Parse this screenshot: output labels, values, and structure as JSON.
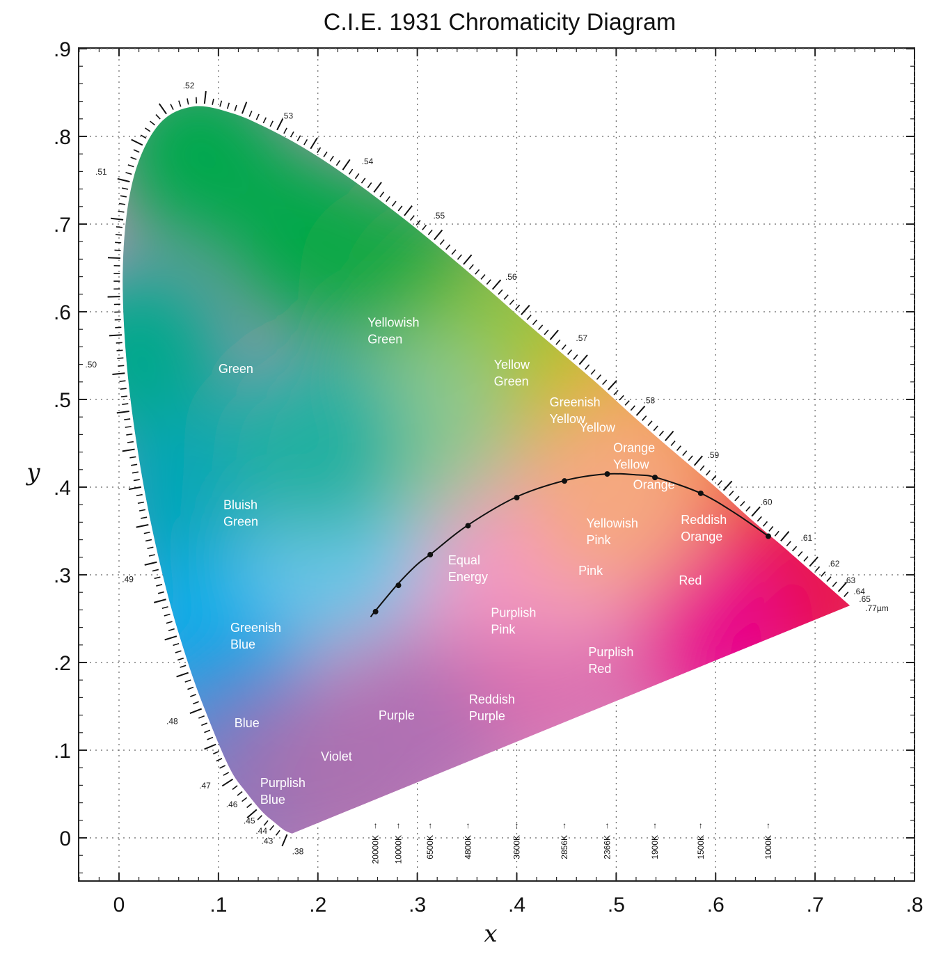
{
  "chart_data": {
    "type": "scatter",
    "title": "C.I.E. 1931 Chromaticity Diagram",
    "xlabel": "x",
    "ylabel": "y",
    "xlim": [
      -0.04,
      0.8
    ],
    "ylim": [
      -0.05,
      0.9
    ],
    "grid": true,
    "x_ticks": [
      {
        "v": 0,
        "label": "0"
      },
      {
        "v": 0.1,
        "label": ".1"
      },
      {
        "v": 0.2,
        "label": ".2"
      },
      {
        "v": 0.3,
        "label": ".3"
      },
      {
        "v": 0.4,
        "label": ".4"
      },
      {
        "v": 0.5,
        "label": ".5"
      },
      {
        "v": 0.6,
        "label": ".6"
      },
      {
        "v": 0.7,
        "label": ".7"
      },
      {
        "v": 0.8,
        "label": ".8"
      }
    ],
    "y_ticks": [
      {
        "v": 0,
        "label": "0"
      },
      {
        "v": 0.1,
        "label": ".1"
      },
      {
        "v": 0.2,
        "label": ".2"
      },
      {
        "v": 0.3,
        "label": ".3"
      },
      {
        "v": 0.4,
        "label": ".4"
      },
      {
        "v": 0.5,
        "label": ".5"
      },
      {
        "v": 0.6,
        "label": ".6"
      },
      {
        "v": 0.7,
        "label": ".7"
      },
      {
        "v": 0.8,
        "label": ".8"
      },
      {
        "v": 0.9,
        "label": ".9"
      }
    ],
    "spectral_locus": [
      [
        0.174,
        0.005
      ],
      [
        0.166,
        0.009
      ],
      [
        0.156,
        0.018
      ],
      [
        0.144,
        0.03
      ],
      [
        0.128,
        0.052
      ],
      [
        0.112,
        0.078
      ],
      [
        0.091,
        0.133
      ],
      [
        0.069,
        0.201
      ],
      [
        0.045,
        0.295
      ],
      [
        0.023,
        0.413
      ],
      [
        0.008,
        0.538
      ],
      [
        0.004,
        0.655
      ],
      [
        0.014,
        0.75
      ],
      [
        0.039,
        0.812
      ],
      [
        0.074,
        0.834
      ],
      [
        0.115,
        0.826
      ],
      [
        0.155,
        0.806
      ],
      [
        0.193,
        0.782
      ],
      [
        0.23,
        0.754
      ],
      [
        0.266,
        0.724
      ],
      [
        0.302,
        0.692
      ],
      [
        0.337,
        0.659
      ],
      [
        0.373,
        0.624
      ],
      [
        0.408,
        0.589
      ],
      [
        0.444,
        0.554
      ],
      [
        0.479,
        0.52
      ],
      [
        0.512,
        0.486
      ],
      [
        0.544,
        0.454
      ],
      [
        0.575,
        0.424
      ],
      [
        0.603,
        0.397
      ],
      [
        0.627,
        0.372
      ],
      [
        0.648,
        0.351
      ],
      [
        0.666,
        0.334
      ],
      [
        0.68,
        0.32
      ],
      [
        0.692,
        0.308
      ],
      [
        0.701,
        0.299
      ],
      [
        0.714,
        0.286
      ],
      [
        0.735,
        0.265
      ]
    ],
    "wavelength_labels": [
      {
        "label": ".38",
        "x": 0.174,
        "y": 0.005
      },
      {
        "label": ".43",
        "x": 0.167,
        "y": 0.009
      },
      {
        "label": ".44",
        "x": 0.164,
        "y": 0.011
      },
      {
        "label": ".45",
        "x": 0.156,
        "y": 0.018
      },
      {
        "label": ".46",
        "x": 0.144,
        "y": 0.03
      },
      {
        "label": ".47",
        "x": 0.124,
        "y": 0.058
      },
      {
        "label": ".48",
        "x": 0.091,
        "y": 0.133
      },
      {
        "label": ".49",
        "x": 0.045,
        "y": 0.295
      },
      {
        "label": ".50",
        "x": 0.008,
        "y": 0.538
      },
      {
        "label": ".51",
        "x": 0.014,
        "y": 0.75
      },
      {
        "label": ".52",
        "x": 0.074,
        "y": 0.834
      },
      {
        "label": ".53",
        "x": 0.155,
        "y": 0.806
      },
      {
        "label": ".54",
        "x": 0.23,
        "y": 0.754
      },
      {
        "label": ".55",
        "x": 0.302,
        "y": 0.692
      },
      {
        "label": ".56",
        "x": 0.373,
        "y": 0.624
      },
      {
        "label": ".57",
        "x": 0.444,
        "y": 0.554
      },
      {
        "label": ".58",
        "x": 0.512,
        "y": 0.486
      },
      {
        "label": ".59",
        "x": 0.575,
        "y": 0.424
      },
      {
        "label": ".60",
        "x": 0.627,
        "y": 0.372
      },
      {
        "label": ".61",
        "x": 0.666,
        "y": 0.334
      },
      {
        "label": ".62",
        "x": 0.692,
        "y": 0.308
      },
      {
        "label": ".63",
        "x": 0.708,
        "y": 0.292
      },
      {
        "label": ".64",
        "x": 0.719,
        "y": 0.281
      },
      {
        "label": ".65",
        "x": 0.726,
        "y": 0.274
      },
      {
        "label": ".77µm",
        "x": 0.735,
        "y": 0.265
      }
    ],
    "planckian_locus": {
      "curve": [
        [
          0.253,
          0.252
        ],
        [
          0.26,
          0.262
        ],
        [
          0.28,
          0.289
        ],
        [
          0.3,
          0.312
        ],
        [
          0.315,
          0.325
        ],
        [
          0.35,
          0.356
        ],
        [
          0.4,
          0.389
        ],
        [
          0.45,
          0.408
        ],
        [
          0.49,
          0.415
        ],
        [
          0.52,
          0.414
        ],
        [
          0.54,
          0.411
        ],
        [
          0.585,
          0.393
        ],
        [
          0.62,
          0.37
        ],
        [
          0.653,
          0.344
        ]
      ],
      "points": [
        {
          "label": "20000K",
          "x": 0.258,
          "y": 0.258
        },
        {
          "label": "10000K",
          "x": 0.281,
          "y": 0.288
        },
        {
          "label": "6500K",
          "x": 0.313,
          "y": 0.323
        },
        {
          "label": "4800K",
          "x": 0.351,
          "y": 0.356
        },
        {
          "label": "3600K",
          "x": 0.4,
          "y": 0.388
        },
        {
          "label": "2856K",
          "x": 0.448,
          "y": 0.407
        },
        {
          "label": "2366K",
          "x": 0.491,
          "y": 0.415
        },
        {
          "label": "1900K",
          "x": 0.539,
          "y": 0.411
        },
        {
          "label": "1500K",
          "x": 0.585,
          "y": 0.393
        },
        {
          "label": "1000K",
          "x": 0.653,
          "y": 0.344
        }
      ]
    },
    "color_regions": [
      {
        "lines": [
          "Green"
        ],
        "x": 0.1,
        "y": 0.53
      },
      {
        "lines": [
          "Yellowish",
          "Green"
        ],
        "x": 0.25,
        "y": 0.583
      },
      {
        "lines": [
          "Yellow",
          "Green"
        ],
        "x": 0.377,
        "y": 0.535
      },
      {
        "lines": [
          "Greenish",
          "Yellow"
        ],
        "x": 0.433,
        "y": 0.492
      },
      {
        "lines": [
          "Yellow"
        ],
        "x": 0.463,
        "y": 0.463
      },
      {
        "lines": [
          "Orange",
          "Yellow"
        ],
        "x": 0.497,
        "y": 0.44
      },
      {
        "lines": [
          "Orange"
        ],
        "x": 0.517,
        "y": 0.398
      },
      {
        "lines": [
          "Reddish",
          "Orange"
        ],
        "x": 0.565,
        "y": 0.358
      },
      {
        "lines": [
          "Yellowish",
          "Pink"
        ],
        "x": 0.47,
        "y": 0.354
      },
      {
        "lines": [
          "Pink"
        ],
        "x": 0.462,
        "y": 0.3
      },
      {
        "lines": [
          "Red"
        ],
        "x": 0.563,
        "y": 0.289
      },
      {
        "lines": [
          "Bluish",
          "Green"
        ],
        "x": 0.105,
        "y": 0.375
      },
      {
        "lines": [
          "Equal",
          "Energy"
        ],
        "x": 0.331,
        "y": 0.312
      },
      {
        "lines": [
          "Purplish",
          "Pink"
        ],
        "x": 0.374,
        "y": 0.252
      },
      {
        "lines": [
          "Greenish",
          "Blue"
        ],
        "x": 0.112,
        "y": 0.235
      },
      {
        "lines": [
          "Purplish",
          "Red"
        ],
        "x": 0.472,
        "y": 0.207
      },
      {
        "lines": [
          "Reddish",
          "Purple"
        ],
        "x": 0.352,
        "y": 0.153
      },
      {
        "lines": [
          "Purple"
        ],
        "x": 0.261,
        "y": 0.135
      },
      {
        "lines": [
          "Blue"
        ],
        "x": 0.116,
        "y": 0.126
      },
      {
        "lines": [
          "Violet"
        ],
        "x": 0.203,
        "y": 0.088
      },
      {
        "lines": [
          "Purplish",
          "Blue"
        ],
        "x": 0.142,
        "y": 0.058
      }
    ],
    "color_stops": [
      {
        "x": 0.08,
        "y": 0.78,
        "color": "#00a84e"
      },
      {
        "x": 0.2,
        "y": 0.68,
        "color": "#00a84a"
      },
      {
        "x": 0.3,
        "y": 0.64,
        "color": "#18a844"
      },
      {
        "x": 0.4,
        "y": 0.56,
        "color": "#8ec43c"
      },
      {
        "x": 0.48,
        "y": 0.48,
        "color": "#c8c020"
      },
      {
        "x": 0.54,
        "y": 0.44,
        "color": "#f2a61a"
      },
      {
        "x": 0.6,
        "y": 0.38,
        "color": "#f07a2a"
      },
      {
        "x": 0.68,
        "y": 0.31,
        "color": "#ee2840"
      },
      {
        "x": 0.7,
        "y": 0.27,
        "color": "#e8154a"
      },
      {
        "x": 0.58,
        "y": 0.24,
        "color": "#e8068c"
      },
      {
        "x": 0.02,
        "y": 0.55,
        "color": "#00a88c"
      },
      {
        "x": 0.07,
        "y": 0.38,
        "color": "#00a6b8"
      },
      {
        "x": 0.09,
        "y": 0.22,
        "color": "#00aeea"
      },
      {
        "x": 0.12,
        "y": 0.11,
        "color": "#2a8ed8"
      },
      {
        "x": 0.16,
        "y": 0.06,
        "color": "#8e74b8"
      },
      {
        "x": 0.24,
        "y": 0.08,
        "color": "#aa72b0"
      },
      {
        "x": 0.33,
        "y": 0.15,
        "color": "#b070b4"
      },
      {
        "x": 0.44,
        "y": 0.2,
        "color": "#da70b0"
      },
      {
        "x": 0.33,
        "y": 0.33,
        "color": "#ef98c6"
      },
      {
        "x": 0.45,
        "y": 0.33,
        "color": "#f49ac0"
      },
      {
        "x": 0.22,
        "y": 0.33,
        "color": "#6cc6e8"
      },
      {
        "x": 0.3,
        "y": 0.47,
        "color": "#8ec88e"
      },
      {
        "x": 0.2,
        "y": 0.45,
        "color": "#20b0a0"
      },
      {
        "x": 0.5,
        "y": 0.39,
        "color": "#f5a880"
      }
    ]
  }
}
